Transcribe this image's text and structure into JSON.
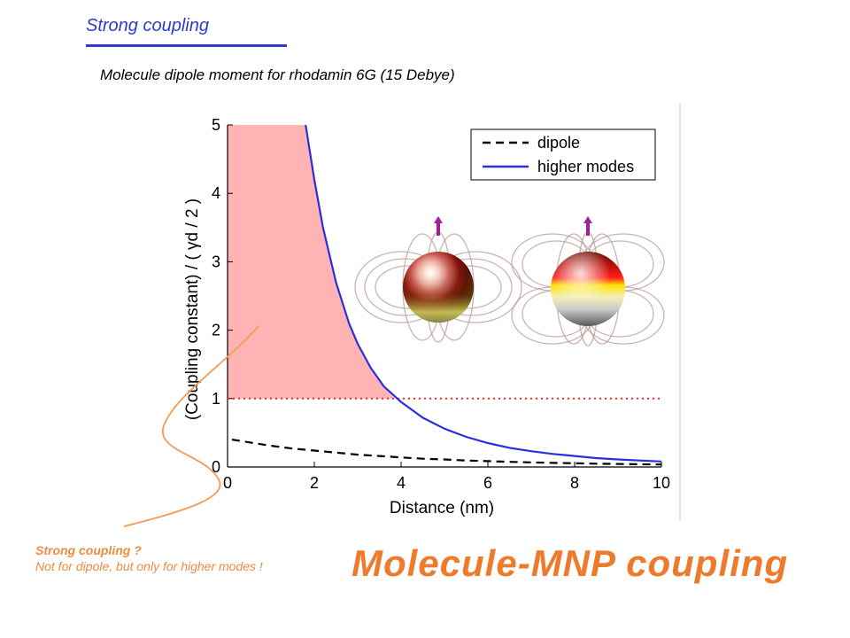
{
  "slide": {
    "heading": "Strong coupling",
    "subheading": "Molecule dipole moment for rhodamin 6G (15 Debye)",
    "note_question": "Strong coupling ?",
    "note_answer": "Not for dipole, but only for higher modes !",
    "big_title": "Molecule-MNP coupling"
  },
  "colors": {
    "heading": "#2a3ccf",
    "note": "#f08a40",
    "big_title": "#ee7a2c",
    "higher_modes": "#2a2ee0",
    "dipole": "#000000",
    "strong_region": "#ffb3b3",
    "threshold": "#ff2020"
  },
  "chart_data": {
    "type": "line",
    "xlabel": "Distance (nm)",
    "ylabel": "(Coupling constant) / ( γd / 2 )",
    "xlim": [
      0,
      10
    ],
    "ylim": [
      0,
      5
    ],
    "xticks": [
      "0",
      "2",
      "4",
      "6",
      "8",
      "10"
    ],
    "yticks": [
      "0",
      "1",
      "2",
      "3",
      "4",
      "5"
    ],
    "legend_position": "top-right",
    "series": [
      {
        "name": "dipole",
        "style": "dashed",
        "x": [
          0.1,
          0.5,
          1,
          1.5,
          2,
          2.5,
          3,
          3.5,
          4,
          4.5,
          5,
          5.5,
          6,
          6.5,
          7,
          7.5,
          8,
          8.5,
          9,
          9.5,
          10
        ],
        "y": [
          0.4,
          0.36,
          0.31,
          0.27,
          0.24,
          0.21,
          0.18,
          0.16,
          0.14,
          0.12,
          0.11,
          0.095,
          0.085,
          0.075,
          0.068,
          0.06,
          0.054,
          0.048,
          0.044,
          0.04,
          0.036
        ]
      },
      {
        "name": "higher modes",
        "style": "solid",
        "x": [
          1.8,
          2,
          2.2,
          2.5,
          2.8,
          3,
          3.3,
          3.6,
          4,
          4.5,
          5,
          5.5,
          6,
          6.5,
          7,
          7.5,
          8,
          8.5,
          9,
          9.5,
          10
        ],
        "y": [
          5.0,
          4.2,
          3.5,
          2.7,
          2.1,
          1.8,
          1.45,
          1.18,
          0.95,
          0.72,
          0.56,
          0.44,
          0.35,
          0.28,
          0.23,
          0.19,
          0.16,
          0.13,
          0.11,
          0.095,
          0.08
        ]
      }
    ],
    "threshold": {
      "y": 1,
      "style": "dotted"
    },
    "strong_coupling_region": {
      "x_from": 0,
      "x_to": 3.85,
      "y_from": 1,
      "y_to": 5
    },
    "insets": [
      {
        "name": "dipole-mode-sphere-icon"
      },
      {
        "name": "higher-mode-sphere-icon"
      }
    ]
  }
}
